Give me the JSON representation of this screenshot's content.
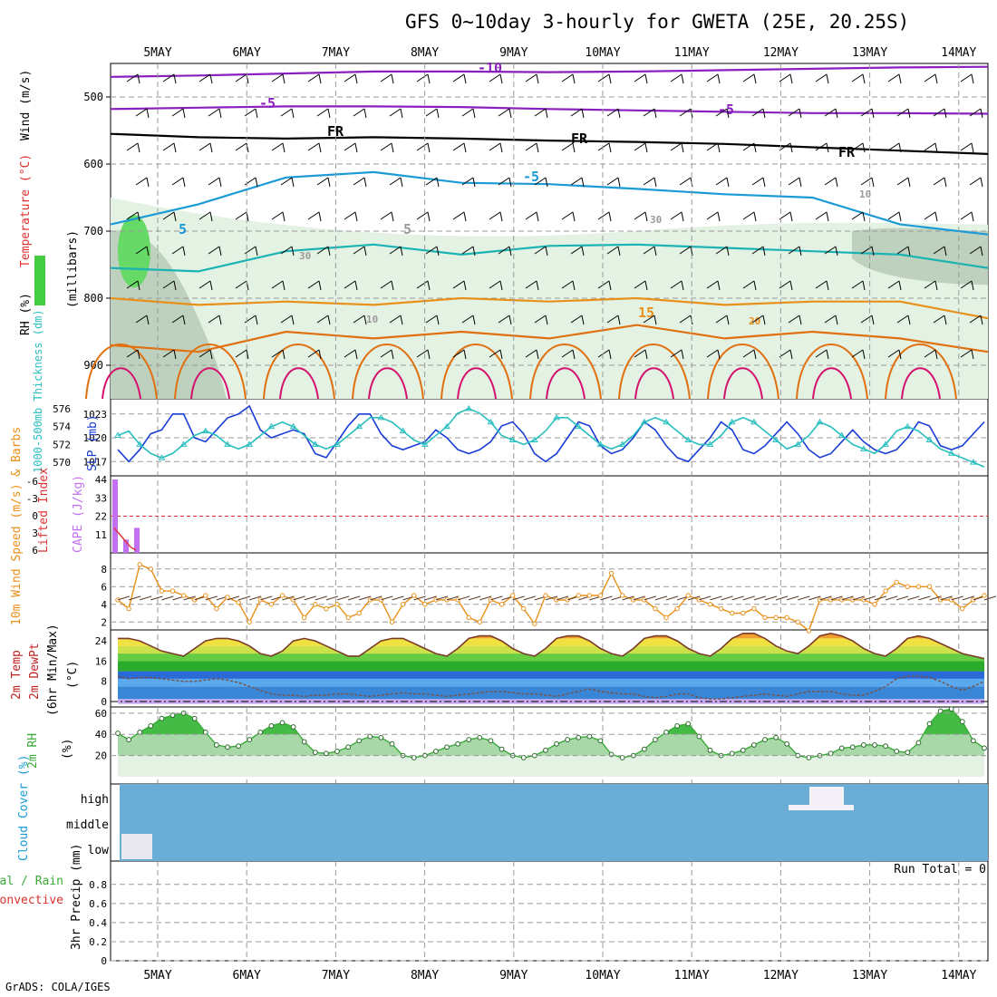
{
  "title": "GFS 0~10day 3-hourly for GWETA (25E, 20.25S)",
  "footer": "GrADS: COLA/IGES",
  "run_total": "Run Total = 0",
  "colors": {
    "axis": "#000000",
    "grid": "#9a9a9a",
    "purple": "#8a1fbf",
    "black": "#000000",
    "blue": "#1a9ad6",
    "cyan": "#1ab3b3",
    "orange": "#e8901a",
    "dark_orange": "#e07010",
    "magenta": "#d4126e",
    "slp": "#1a3dd6",
    "thickness": "#2abfbf",
    "cape": "#c070f0",
    "li": "#e03030",
    "wind10": "#e8901a",
    "barbs": "#5a3a2a",
    "temp_line": "#7a3a28",
    "dew_line": "#7a5040",
    "rh_green": "#3aaa3a",
    "cloud_bg": "#6aaed6",
    "cloud_fill": "#e8e8ee",
    "rh_high": "#44bb44",
    "rh_mid": "#a8d8a8",
    "rh_low": "#e4f2e4"
  },
  "chart_data": [
    {
      "panel": "upper-air",
      "type": "heatmap",
      "x_ticks": [
        "5MAY",
        "6MAY",
        "7MAY",
        "8MAY",
        "9MAY",
        "10MAY",
        "11MAY",
        "12MAY",
        "13MAY",
        "14MAY"
      ],
      "y_ticks": [
        500,
        600,
        700,
        800,
        900
      ],
      "ylabel_parts": [
        "Wind (m/s)",
        "Temperature (°C)",
        "RH (%)"
      ],
      "ylabel_unit": "(millibars)",
      "contour_labels": [
        "-10",
        "-5",
        "-5",
        "FR",
        "FR",
        "FR",
        "-5",
        "5",
        "5",
        "15",
        "20",
        "10",
        "10",
        "30",
        "30"
      ],
      "isotherms": [
        {
          "label": "-10",
          "color": "purple",
          "p": [
            470,
            468,
            465,
            462,
            462,
            463,
            462,
            460,
            458,
            456,
            455
          ]
        },
        {
          "label": "-5",
          "color": "purple",
          "p": [
            518,
            516,
            514,
            514,
            515,
            518,
            520,
            522,
            524,
            524,
            525
          ]
        },
        {
          "label": "FR",
          "color": "black",
          "p": [
            555,
            560,
            562,
            560,
            562,
            565,
            567,
            570,
            575,
            580,
            585
          ]
        },
        {
          "label": "5",
          "color": "blue",
          "p": [
            690,
            660,
            620,
            612,
            628,
            630,
            637,
            645,
            650,
            690,
            705
          ]
        },
        {
          "label": "5",
          "color": "cyan",
          "p": [
            755,
            760,
            730,
            720,
            735,
            722,
            720,
            725,
            730,
            735,
            755
          ]
        },
        {
          "label": "15",
          "color": "orange",
          "p": [
            800,
            810,
            805,
            810,
            800,
            805,
            800,
            810,
            805,
            805,
            830
          ]
        },
        {
          "label": "20",
          "color": "dark_orange",
          "p": [
            870,
            880,
            850,
            860,
            850,
            860,
            840,
            860,
            850,
            860,
            880
          ]
        }
      ]
    },
    {
      "panel": "slp-thickness",
      "type": "line",
      "ylabel_left": "1000-500mb Thickness (dm)",
      "ylabel_right": "SLP (mb)",
      "thickness_ticks": [
        570,
        572,
        574,
        576
      ],
      "slp_ticks": [
        1017,
        1020,
        1023
      ],
      "series": [
        {
          "name": "SLP (mb)",
          "values": [
            1018.5,
            1017,
            1018.5,
            1020.5,
            1021,
            1023,
            1023,
            1020,
            1019.5,
            1021,
            1022.5,
            1023,
            1024,
            1021,
            1020,
            1020.5,
            1021,
            1020.5,
            1018,
            1017.5,
            1019.5,
            1021.5,
            1023,
            1023,
            1020.5,
            1019,
            1018.5,
            1019,
            1019.5,
            1021,
            1020,
            1018.5,
            1018,
            1018.5,
            1019.5,
            1021.5,
            1022,
            1020.5,
            1018,
            1017,
            1018,
            1020,
            1022,
            1021.5,
            1019,
            1018,
            1018.5,
            1020,
            1022,
            1021,
            1019,
            1017.5,
            1017,
            1018.5,
            1020,
            1022,
            1021,
            1018.5,
            1018,
            1019,
            1020.5,
            1022,
            1020.5,
            1018.5,
            1017.5,
            1018,
            1019.5,
            1021,
            1019.5,
            1018.5,
            1018,
            1018.5,
            1020,
            1022,
            1021.5,
            1019,
            1018.5,
            1019,
            1020.5,
            1022
          ]
        },
        {
          "name": "1000-500mb Thickness (dm)",
          "values": [
            573,
            573.5,
            572,
            571,
            570.5,
            571,
            572,
            573,
            573.5,
            573,
            572,
            571.5,
            572,
            573,
            574,
            574.5,
            574,
            573,
            572,
            571.5,
            572,
            573,
            574,
            575,
            575,
            574.5,
            573.5,
            572.5,
            572,
            573,
            574,
            575.5,
            576,
            575.5,
            574.5,
            573,
            572.5,
            572,
            572.5,
            573.5,
            575,
            575,
            574,
            573,
            572,
            571.5,
            572,
            573,
            574.5,
            575,
            574.5,
            573.5,
            572.5,
            572,
            572,
            573,
            574.5,
            575,
            574.5,
            573.5,
            572.5,
            571.5,
            572,
            573,
            574.5,
            574,
            573,
            572,
            571.5,
            571,
            572,
            573.5,
            574,
            573.5,
            572.5,
            571.5,
            571,
            570.5,
            570,
            569.5
          ]
        }
      ]
    },
    {
      "panel": "cape-li",
      "type": "bar",
      "ylabel_left": "Lifted Index",
      "ylabel_right": "CAPE (J/kg)",
      "li_ticks": [
        "-6",
        "-3",
        "0",
        "3",
        "6"
      ],
      "cape_ticks": [
        11,
        22,
        33,
        44
      ],
      "cape_values": [
        44,
        0,
        8,
        0,
        15
      ],
      "li_line": [
        2.5,
        3.5,
        4.5,
        5.5,
        6
      ]
    },
    {
      "panel": "wind10m",
      "type": "line",
      "ylabel": "10m Wind Speed (m/s) & Barbs",
      "y_ticks": [
        2,
        4,
        6,
        8
      ],
      "series": [
        {
          "name": "10m Wind Speed",
          "values": [
            4.5,
            3.5,
            8.5,
            8,
            5.5,
            5.5,
            5,
            4.5,
            5,
            3.5,
            4.8,
            4.2,
            2,
            4.5,
            4,
            5,
            4.5,
            2.5,
            4,
            3.5,
            4,
            2.5,
            3,
            4.5,
            4.5,
            2,
            4,
            5,
            4,
            4.5,
            4.5,
            4.5,
            2.5,
            2,
            4.5,
            4,
            5,
            3.5,
            1.8,
            5,
            4.5,
            4.5,
            5,
            5,
            5,
            7.5,
            5,
            4.5,
            4.5,
            3.5,
            2.5,
            3.5,
            5,
            4.5,
            4,
            3.5,
            3,
            3,
            3.5,
            2.5,
            2.5,
            2.5,
            2,
            1,
            4.5,
            4.5,
            4.5,
            4.5,
            4.5,
            4,
            5.5,
            6.5,
            6,
            6,
            6,
            4.5,
            4.5,
            3.5,
            4.5,
            5
          ]
        }
      ]
    },
    {
      "panel": "temperature",
      "type": "area",
      "ylabel": "2m Temp 2m DewPt (6hr Min/Max) (°C)",
      "y_ticks": [
        0,
        8,
        16,
        24
      ],
      "series": [
        {
          "name": "2m Temp",
          "values": [
            25,
            25,
            24,
            22,
            20,
            19,
            18,
            21,
            24,
            25,
            25,
            24,
            22,
            19,
            18,
            20,
            24,
            25,
            24,
            22,
            20,
            18,
            18,
            21,
            24,
            25,
            25,
            23,
            21,
            19,
            18,
            21,
            25,
            26,
            26,
            24,
            21,
            19,
            18,
            21,
            25,
            26,
            26,
            24,
            21,
            19,
            18,
            21,
            25,
            26,
            26,
            24,
            21,
            19,
            18,
            21,
            25,
            27,
            27,
            25,
            22,
            20,
            19,
            22,
            26,
            27,
            26,
            24,
            21,
            19,
            18,
            21,
            25,
            26,
            25,
            23,
            21,
            19,
            18,
            17
          ]
        },
        {
          "name": "2m DewPt",
          "values": [
            10,
            9,
            9.5,
            9.5,
            9,
            8.5,
            8,
            8,
            8.5,
            9,
            8.5,
            7.5,
            6,
            4.5,
            3,
            2.5,
            2.5,
            2,
            2.5,
            2.5,
            3,
            3,
            2.5,
            2,
            2.5,
            3,
            3.5,
            3,
            3,
            2.5,
            2,
            2.5,
            3,
            3.5,
            4,
            4,
            3.5,
            3,
            3,
            2.5,
            2,
            3,
            4,
            5,
            4,
            3.5,
            3,
            3,
            2,
            1.5,
            2,
            3,
            3,
            1.5,
            1,
            1,
            1.5,
            2,
            2.5,
            3,
            2.5,
            2,
            3,
            4,
            4,
            4,
            3,
            2.5,
            2.5,
            4,
            6,
            9,
            10,
            10,
            9.5,
            8,
            6,
            4.5,
            6,
            8
          ]
        }
      ]
    },
    {
      "panel": "rh2m",
      "type": "area",
      "ylabel": "2m RH (%)",
      "y_ticks": [
        20,
        40,
        60
      ],
      "series": [
        {
          "name": "2m RH",
          "values": [
            41,
            35,
            42,
            48,
            55,
            58,
            60,
            55,
            42,
            30,
            28,
            29,
            35,
            42,
            48,
            51,
            47,
            33,
            23,
            22,
            24,
            28,
            34,
            38,
            37,
            31,
            20,
            18,
            20,
            24,
            28,
            31,
            35,
            37,
            34,
            26,
            20,
            18,
            20,
            25,
            31,
            35,
            37,
            38,
            34,
            21,
            18,
            20,
            26,
            35,
            42,
            48,
            50,
            38,
            25,
            20,
            22,
            25,
            30,
            35,
            37,
            31,
            20,
            18,
            20,
            22,
            27,
            28,
            30,
            30,
            29,
            24,
            23,
            32,
            50,
            62,
            64,
            52,
            34,
            27
          ]
        }
      ]
    },
    {
      "panel": "cloud-cover",
      "type": "bar",
      "ylabel": "Cloud Cover (%)",
      "levels": [
        "high",
        "middle",
        "low"
      ]
    },
    {
      "panel": "precip",
      "type": "bar",
      "ylabel": "3hr Precip (mm)",
      "side_labels": [
        "Total / Rain",
        "Convective"
      ],
      "y_ticks": [
        "0",
        "0.2",
        "0.4",
        "0.6",
        "0.8"
      ],
      "x_ticks": [
        "5MAY",
        "6MAY",
        "7MAY",
        "8MAY",
        "9MAY",
        "10MAY",
        "11MAY",
        "12MAY",
        "13MAY",
        "14MAY"
      ],
      "values": [
        0,
        0,
        0,
        0,
        0,
        0,
        0,
        0,
        0,
        0
      ]
    }
  ]
}
